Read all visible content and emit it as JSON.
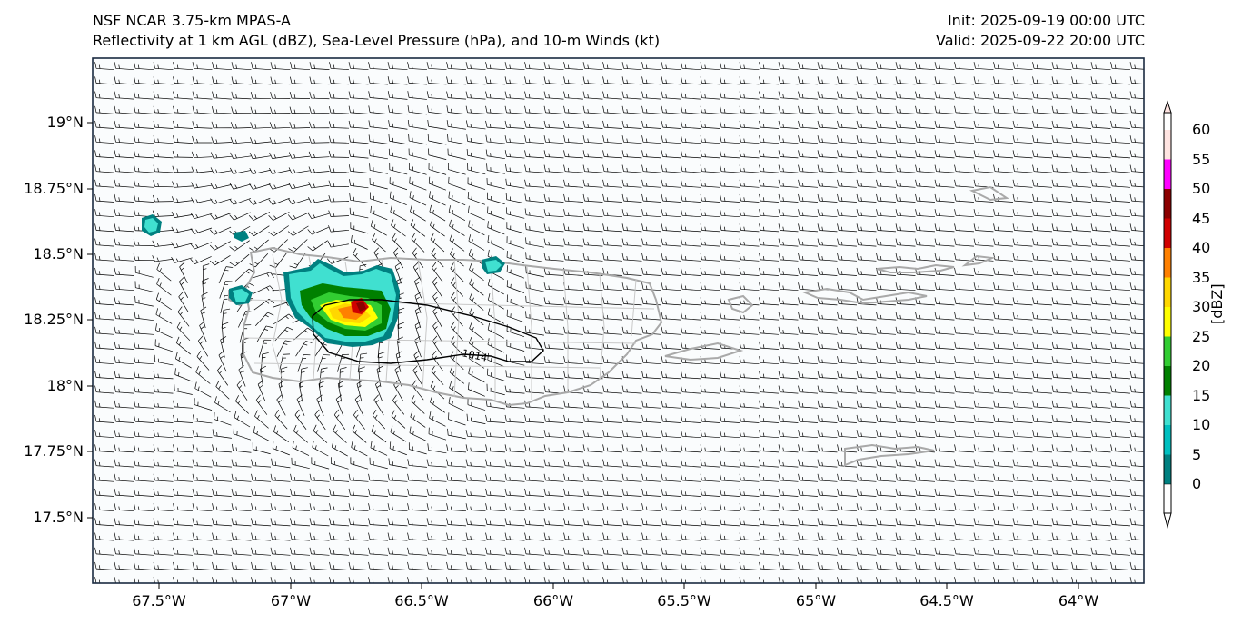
{
  "header": {
    "title_left_1": "NSF NCAR 3.75-km MPAS-A",
    "title_left_2": "Reflectivity at 1 km AGL (dBZ), Sea-Level Pressure (hPa), and 10-m Winds (kt)",
    "title_right_1": "Init: 2025-09-19 00:00 UTC",
    "title_right_2": "Valid: 2025-09-22 20:00 UTC"
  },
  "axes": {
    "lat_labels": [
      "19°N",
      "18.75°N",
      "18.5°N",
      "18.25°N",
      "18°N",
      "17.75°N",
      "17.5°N"
    ],
    "lon_labels": [
      "67.5°W",
      "67°W",
      "66.5°W",
      "66°W",
      "65.5°W",
      "65°W",
      "64.5°W",
      "64°W"
    ]
  },
  "colorbar": {
    "unit": "[dBZ]",
    "ticks": [
      "0",
      "5",
      "10",
      "15",
      "20",
      "25",
      "30",
      "35",
      "40",
      "45",
      "50",
      "55",
      "60"
    ],
    "colors": [
      "#008080",
      "#00c0c0",
      "#40e0d0",
      "#008000",
      "#32cd32",
      "#ffff00",
      "#ffd700",
      "#ff8000",
      "#d00000",
      "#8b0000",
      "#ff00ff",
      "#ffe4e1"
    ]
  },
  "contour": {
    "label": "1014"
  },
  "colors": {
    "coast": "#a9a9a9",
    "frame": "#1a2a40",
    "ocean": "#fafcfd"
  }
}
